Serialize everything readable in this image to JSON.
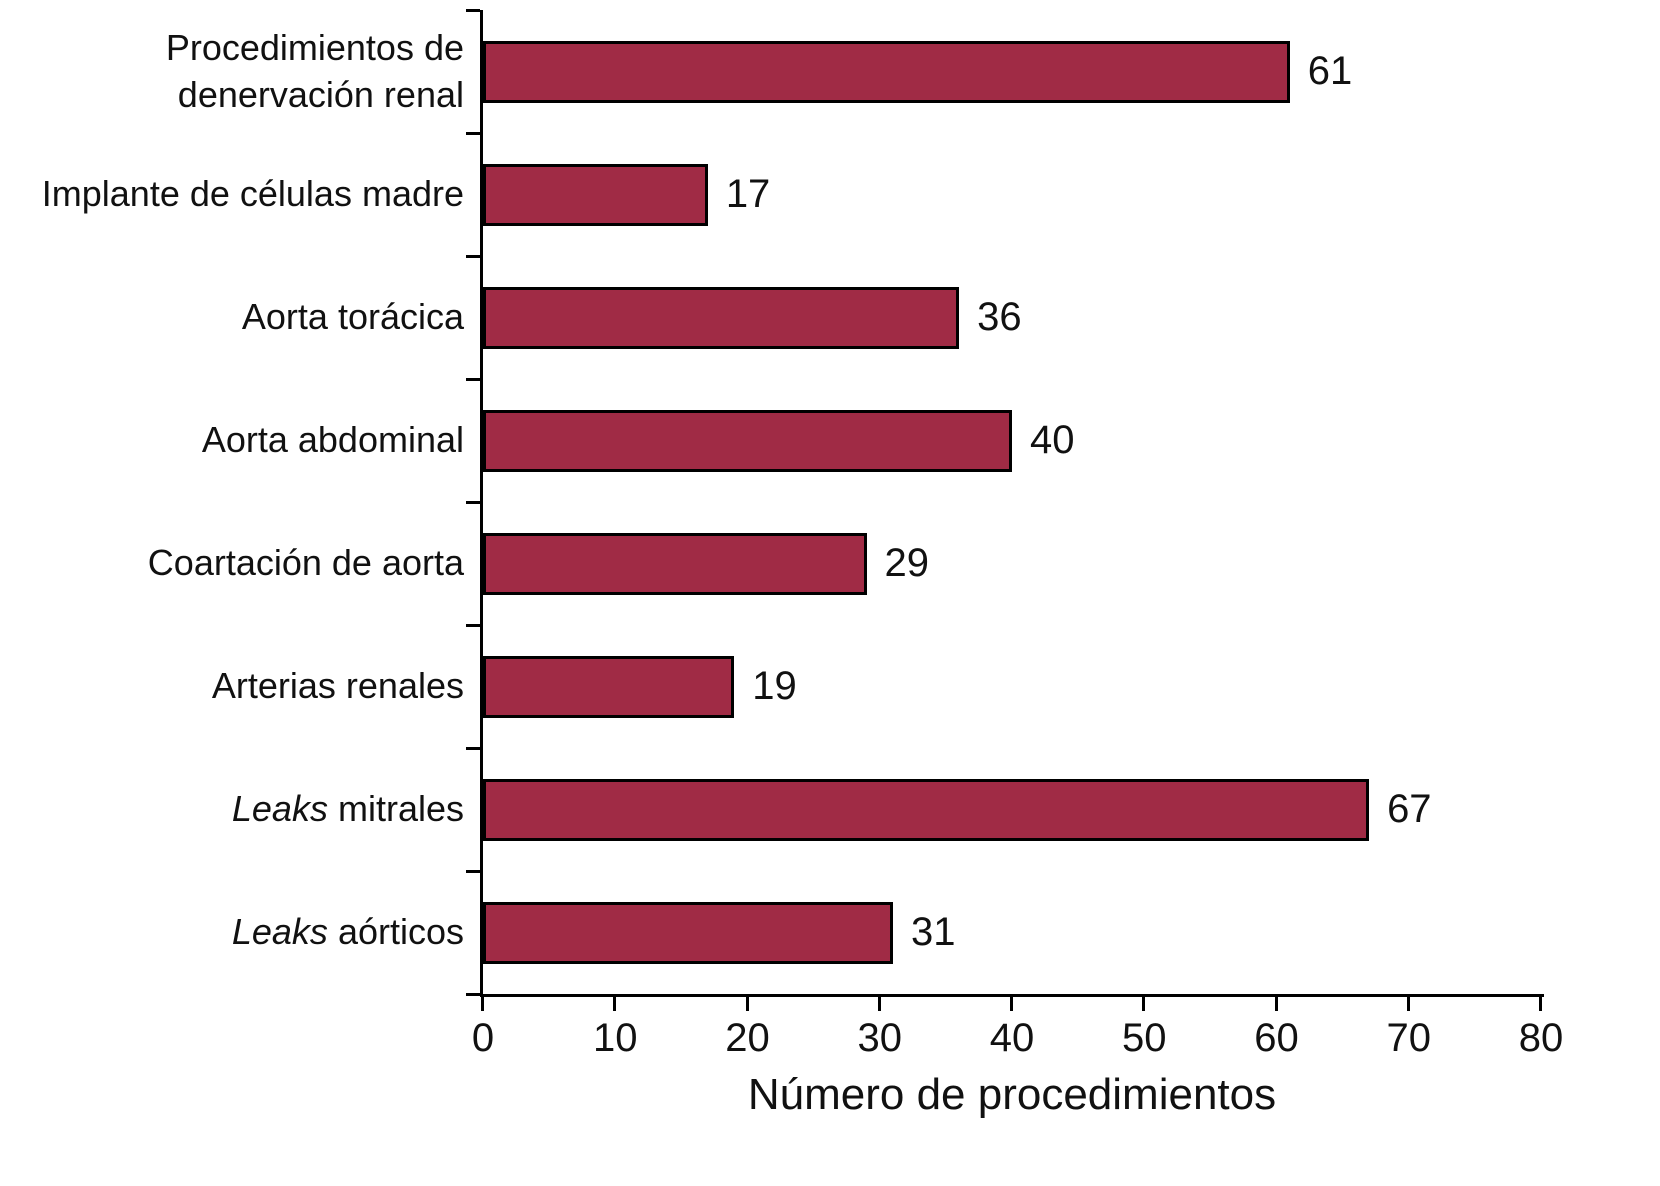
{
  "chart_data": {
    "type": "bar",
    "orientation": "horizontal",
    "title": "",
    "xlabel": "Número de procedimientos",
    "ylabel": "",
    "xlim": [
      0,
      80
    ],
    "xticks": [
      0,
      10,
      20,
      30,
      40,
      50,
      60,
      70,
      80
    ],
    "grid": false,
    "legend": false,
    "value_labels_shown": true,
    "bar_color": "#a02b45",
    "bar_border_color": "#000000",
    "categories": [
      [
        {
          "text": "Procedimientos de denervación renal",
          "italic": false
        }
      ],
      [
        {
          "text": "Implante de células madre",
          "italic": false
        }
      ],
      [
        {
          "text": "Aorta torácica",
          "italic": false
        }
      ],
      [
        {
          "text": "Aorta abdominal",
          "italic": false
        }
      ],
      [
        {
          "text": "Coartación de aorta",
          "italic": false
        }
      ],
      [
        {
          "text": "Arterias renales",
          "italic": false
        }
      ],
      [
        {
          "text": "Leaks",
          "italic": true
        },
        {
          "text": " mitrales",
          "italic": false
        }
      ],
      [
        {
          "text": "Leaks",
          "italic": true
        },
        {
          "text": " aórticos",
          "italic": false
        }
      ]
    ],
    "values": [
      61,
      17,
      36,
      40,
      29,
      19,
      67,
      31
    ]
  }
}
